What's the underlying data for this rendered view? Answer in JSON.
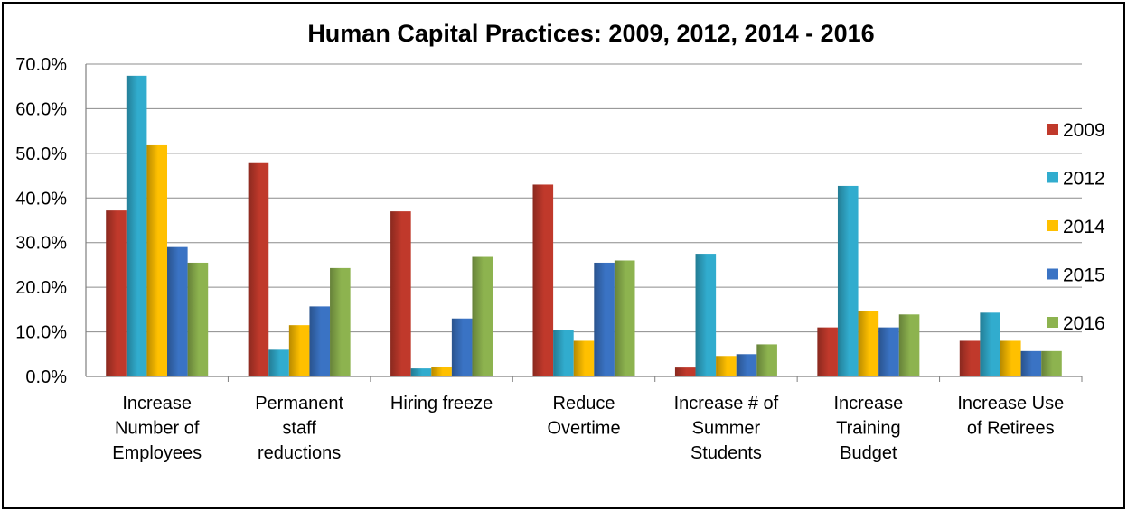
{
  "chart_data": {
    "type": "bar",
    "title": "Human Capital Practices: 2009, 2012, 2014 - 2016",
    "xlabel": "",
    "ylabel": "",
    "ylim": [
      0,
      70
    ],
    "yticks": [
      "0.0%",
      "10.0%",
      "20.0%",
      "30.0%",
      "40.0%",
      "50.0%",
      "60.0%",
      "70.0%"
    ],
    "grid": true,
    "legend_position": "right",
    "categories": [
      [
        "Increase",
        "Number of",
        "Employees"
      ],
      [
        "Permanent",
        "staff",
        "reductions"
      ],
      [
        "Hiring freeze"
      ],
      [
        "Reduce",
        "Overtime"
      ],
      [
        "Increase # of",
        "Summer",
        "Students"
      ],
      [
        "Increase",
        "Training",
        "Budget"
      ],
      [
        "Increase Use",
        "of Retirees"
      ]
    ],
    "series": [
      {
        "name": "2009",
        "color": "#C0392B",
        "values": [
          37.2,
          48.0,
          37.0,
          43.0,
          2.0,
          11.0,
          8.0
        ]
      },
      {
        "name": "2012",
        "color": "#31ACCE",
        "values": [
          67.4,
          6.0,
          1.8,
          10.5,
          27.5,
          42.7,
          14.3
        ]
      },
      {
        "name": "2014",
        "color": "#FFC000",
        "values": [
          51.8,
          11.5,
          2.2,
          8.0,
          4.6,
          14.6,
          8.0
        ]
      },
      {
        "name": "2015",
        "color": "#3A73C4",
        "values": [
          29.0,
          15.7,
          13.0,
          25.5,
          5.0,
          11.0,
          5.7
        ]
      },
      {
        "name": "2016",
        "color": "#8DB34F",
        "values": [
          25.5,
          24.3,
          26.8,
          26.0,
          7.2,
          13.9,
          5.7
        ]
      }
    ]
  }
}
